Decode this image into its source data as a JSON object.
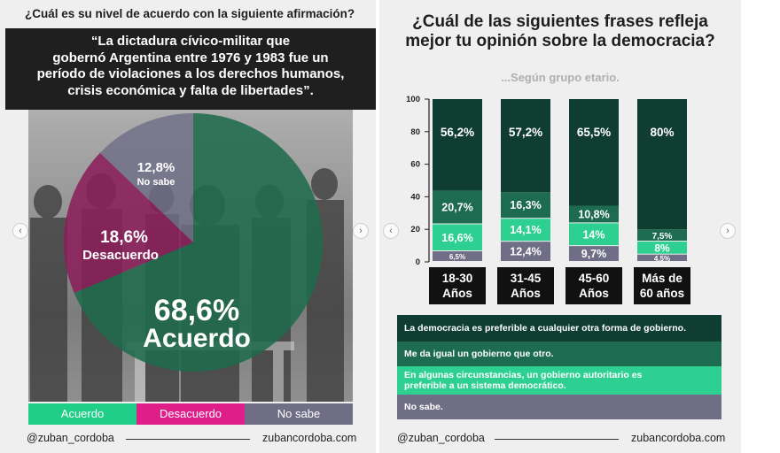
{
  "left": {
    "question": "¿Cuál es su nivel de acuerdo con la siguiente afirmación?",
    "quote_lines": [
      "“La dictadura cívico-militar que",
      "gobernó Argentina entre 1976 y 1983 fue un",
      "período de violaciones a los derechos humanos,",
      "crisis económica y falta de libertades”."
    ],
    "legend": [
      "Acuerdo",
      "Desacuerdo",
      "No sabe"
    ],
    "handle": "@zuban_cordoba",
    "site": "zubancordoba.com"
  },
  "right": {
    "title_lines": [
      "¿Cuál de las siguientes frases refleja",
      "mejor tu opinión sobre la democracia?"
    ],
    "subtitle": "...Según grupo etario.",
    "legend": [
      "La democracia es preferible a  cualquier otra forma de gobierno.",
      "Me da igual un gobierno que otro.",
      "En algunas circunstancias, un gobierno autoritario es preferible a un sistema democrático.",
      "No sabe."
    ],
    "handle": "@zuban_cordoba",
    "site": "zubancordoba.com"
  },
  "colors": {
    "acuerdo": "#1fcf88",
    "acuerdo_pie": "#1f6b4d",
    "desacuerdo": "#e01e8a",
    "desacuerdo_pie": "#8a1f5a",
    "nosabe": "#6f6e86",
    "democracia": "#0f3d31",
    "me_da_igual": "#1d6b51",
    "autoritario": "#2ed092",
    "no_sabe": "#6f6e86"
  },
  "chart_data": [
    {
      "type": "pie",
      "labels": [
        "Acuerdo",
        "Desacuerdo",
        "No sabe"
      ],
      "values": [
        68.6,
        18.6,
        12.8
      ],
      "value_labels": [
        "68,6%",
        "18,6%",
        "12,8%"
      ]
    },
    {
      "type": "bar",
      "stacked": true,
      "categories": [
        [
          "18-30",
          "Años"
        ],
        [
          "31-45",
          "Años"
        ],
        [
          "45-60",
          "Años"
        ],
        [
          "Más de",
          "60 años"
        ]
      ],
      "ylim": [
        0,
        100
      ],
      "yticks": [
        0,
        20,
        40,
        60,
        80,
        100
      ],
      "series": [
        {
          "name": "No sabe.",
          "values": [
            6.5,
            12.4,
            9.7,
            4.5
          ],
          "labels": [
            "6,5%",
            "12,4%",
            "9,7%",
            "4,5%"
          ]
        },
        {
          "name": "En algunas circunstancias, un gobierno autoritario es preferible a un sistema democrático.",
          "values": [
            16.6,
            14.1,
            14,
            8
          ],
          "labels": [
            "16,6%",
            "14,1%",
            "14%",
            "8%"
          ]
        },
        {
          "name": "Me da igual un gobierno que otro.",
          "values": [
            20.7,
            16.3,
            10.8,
            7.5
          ],
          "labels": [
            "20,7%",
            "16,3%",
            "10,8%",
            "7,5%"
          ]
        },
        {
          "name": "La democracia es preferible a  cualquier otra forma de gobierno.",
          "values": [
            56.2,
            57.2,
            65.5,
            80
          ],
          "labels": [
            "56,2%",
            "57,2%",
            "65,5%",
            "80%"
          ]
        }
      ]
    }
  ]
}
